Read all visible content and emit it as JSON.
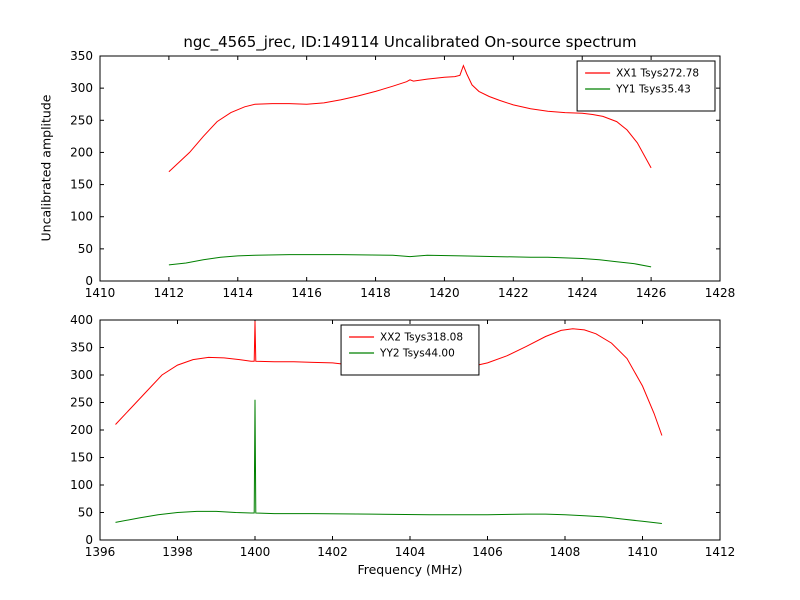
{
  "figure": {
    "title": "ngc_4565_jrec, ID:149114 Uncalibrated On-source spectrum",
    "xlabel": "Frequency (MHz)",
    "ylabel": "Uncalibrated amplitude",
    "background": "#ffffff",
    "axes_color": "#000000"
  },
  "chart_data": [
    {
      "type": "line",
      "subplot": "top",
      "xlim": [
        1410,
        1428
      ],
      "ylim": [
        0,
        350
      ],
      "xticks": [
        1410,
        1412,
        1414,
        1416,
        1418,
        1420,
        1422,
        1424,
        1426,
        1428
      ],
      "yticks": [
        0,
        50,
        100,
        150,
        200,
        250,
        300,
        350
      ],
      "grid": false,
      "legend_pos": "upper-right",
      "series": [
        {
          "name": "XX1 Tsys272.78",
          "color": "#ff0000",
          "x": [
            1412.0,
            1412.3,
            1412.6,
            1413.0,
            1413.4,
            1413.8,
            1414.2,
            1414.5,
            1415.0,
            1415.5,
            1416.0,
            1416.5,
            1417.0,
            1417.5,
            1418.0,
            1418.5,
            1418.9,
            1419.0,
            1419.1,
            1419.5,
            1420.0,
            1420.3,
            1420.45,
            1420.55,
            1420.65,
            1420.8,
            1421.0,
            1421.3,
            1421.6,
            1422.0,
            1422.5,
            1423.0,
            1423.5,
            1424.0,
            1424.3,
            1424.6,
            1425.0,
            1425.3,
            1425.6,
            1426.0
          ],
          "y": [
            170,
            185,
            200,
            225,
            248,
            262,
            271,
            275,
            276,
            276,
            275,
            277,
            282,
            288,
            295,
            303,
            310,
            313,
            311,
            314,
            317,
            318,
            320,
            335,
            322,
            305,
            295,
            287,
            281,
            274,
            268,
            264,
            262,
            261,
            259,
            256,
            248,
            235,
            215,
            176
          ]
        },
        {
          "name": "YY1 Tsys35.43",
          "color": "#008000",
          "x": [
            1412.0,
            1412.5,
            1413.0,
            1413.5,
            1414.0,
            1414.5,
            1415.5,
            1417.0,
            1418.5,
            1419.0,
            1419.5,
            1420.5,
            1421.5,
            1422.5,
            1423.0,
            1423.5,
            1424.0,
            1424.5,
            1425.0,
            1425.5,
            1426.0
          ],
          "y": [
            25,
            28,
            33,
            37,
            39,
            40,
            41,
            41,
            40,
            38,
            40,
            39,
            38,
            37,
            37,
            36,
            35,
            33,
            30,
            27,
            22
          ]
        }
      ]
    },
    {
      "type": "line",
      "subplot": "bottom",
      "xlim": [
        1396,
        1412
      ],
      "ylim": [
        0,
        400
      ],
      "xticks": [
        1396,
        1398,
        1400,
        1402,
        1404,
        1406,
        1408,
        1410,
        1412
      ],
      "yticks": [
        0,
        50,
        100,
        150,
        200,
        250,
        300,
        350,
        400
      ],
      "grid": false,
      "legend_pos": "upper-center",
      "series": [
        {
          "name": "XX2 Tsys318.08",
          "color": "#ff0000",
          "x": [
            1396.4,
            1396.8,
            1397.2,
            1397.6,
            1398.0,
            1398.4,
            1398.8,
            1399.2,
            1399.6,
            1399.9,
            1399.98,
            1400.0,
            1400.02,
            1400.5,
            1401.0,
            1401.5,
            1402.0,
            1402.5,
            1403.0,
            1403.5,
            1404.0,
            1404.5,
            1405.0,
            1405.5,
            1406.0,
            1406.5,
            1407.0,
            1407.5,
            1407.9,
            1408.2,
            1408.5,
            1408.8,
            1409.2,
            1409.6,
            1410.0,
            1410.3,
            1410.5
          ],
          "y": [
            210,
            240,
            270,
            300,
            318,
            328,
            332,
            331,
            328,
            325,
            325,
            398,
            325,
            324,
            324,
            323,
            322,
            318,
            314,
            311,
            309,
            309,
            310,
            314,
            322,
            335,
            352,
            370,
            381,
            384,
            382,
            375,
            358,
            330,
            280,
            230,
            190
          ]
        },
        {
          "name": "YY2 Tsys44.00",
          "color": "#008000",
          "x": [
            1396.4,
            1397.0,
            1397.5,
            1398.0,
            1398.5,
            1399.0,
            1399.5,
            1399.9,
            1399.98,
            1400.0,
            1400.02,
            1400.5,
            1401.5,
            1403.0,
            1404.5,
            1406.0,
            1407.0,
            1407.5,
            1408.0,
            1408.5,
            1409.0,
            1409.5,
            1410.0,
            1410.5
          ],
          "y": [
            32,
            40,
            46,
            50,
            52,
            52,
            50,
            49,
            49,
            255,
            49,
            48,
            48,
            47,
            46,
            46,
            47,
            47,
            46,
            44,
            42,
            38,
            34,
            30
          ]
        }
      ]
    }
  ]
}
